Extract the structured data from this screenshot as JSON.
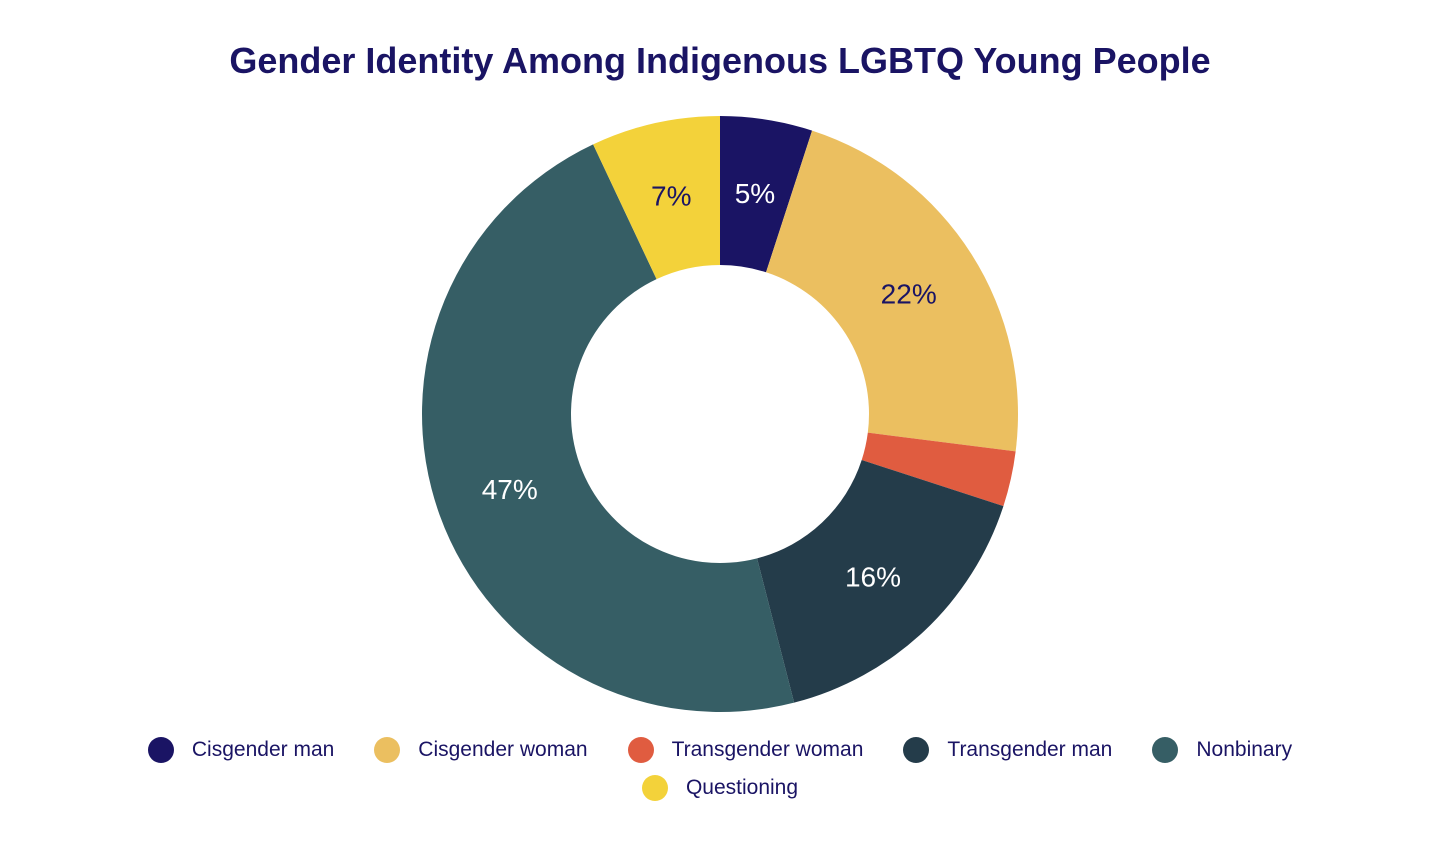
{
  "chart_data": {
    "type": "pie",
    "title": "Gender Identity Among Indigenous LGBTQ Young People",
    "donut": true,
    "legend_position": "bottom",
    "slices": [
      {
        "name": "Cisgender man",
        "value": 5,
        "label": "5%",
        "color": "#1a1464",
        "label_color": "#ffffff"
      },
      {
        "name": "Cisgender woman",
        "value": 22,
        "label": "22%",
        "color": "#ebbf60",
        "label_color": "#1a1464"
      },
      {
        "name": "Transgender woman",
        "value": 3,
        "label": "",
        "color": "#e05c40",
        "label_color": "#ffffff"
      },
      {
        "name": "Transgender man",
        "value": 16,
        "label": "16%",
        "color": "#243c4a",
        "label_color": "#ffffff"
      },
      {
        "name": "Nonbinary",
        "value": 47,
        "label": "47%",
        "color": "#365e65",
        "label_color": "#ffffff"
      },
      {
        "name": "Questioning",
        "value": 7,
        "label": "7%",
        "color": "#f3d23a",
        "label_color": "#1a1464"
      }
    ]
  }
}
